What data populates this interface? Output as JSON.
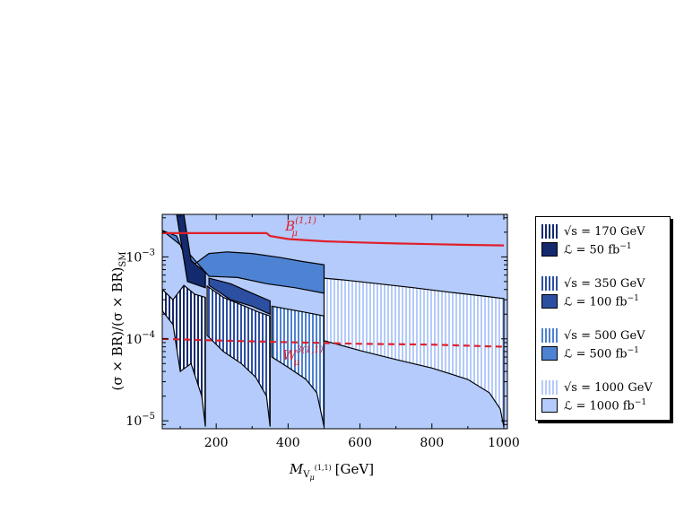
{
  "chart_data": {
    "type": "area",
    "xlabel_main": "M",
    "xlabel_sub": "V",
    "xlabel_subsub": "μ",
    "xlabel_sup": "(1,1)",
    "xlabel_unit": "[GeV]",
    "ylabel": "(σ × BR)/(σ × BR)",
    "ylabel_sub": "SM",
    "xlim": [
      50,
      1010
    ],
    "ylim": [
      8e-06,
      0.0033
    ],
    "yscale": "log",
    "x_ticks": [
      200,
      400,
      600,
      800,
      1000
    ],
    "x_tick_labels": [
      "200",
      "400",
      "600",
      "800",
      "1000"
    ],
    "y_ticks": [
      1e-05,
      0.0001,
      0.001
    ],
    "y_tick_labels": [
      {
        "base": "10",
        "exp": "−5"
      },
      {
        "base": "10",
        "exp": "−4"
      },
      {
        "base": "10",
        "exp": "−3"
      }
    ],
    "regions": [
      {
        "sqrt_s": 1000,
        "color": "#b4cbfb",
        "hatch": false,
        "upper": [
          [
            50,
            0.0033
          ],
          [
            1000,
            0.0033
          ]
        ],
        "lower": [
          [
            50,
            0.0033
          ],
          [
            1000,
            0.0033
          ]
        ]
      },
      {
        "sqrt_s": 1000,
        "color": "#b4cbfb",
        "hatch": true,
        "upper": [
          [
            500,
            0.00055
          ],
          [
            560,
            0.00052
          ],
          [
            650,
            0.00047
          ],
          [
            750,
            0.00042
          ],
          [
            850,
            0.00037
          ],
          [
            950,
            0.00033
          ],
          [
            1000,
            0.00031
          ]
        ],
        "lower": [
          [
            500,
            9.5e-05
          ],
          [
            600,
            7.2e-05
          ],
          [
            700,
            5.6e-05
          ],
          [
            800,
            4.4e-05
          ],
          [
            900,
            3.2e-05
          ],
          [
            960,
            2.2e-05
          ],
          [
            990,
            1.4e-05
          ],
          [
            1000,
            8.5e-06
          ]
        ]
      },
      {
        "sqrt_s": 500,
        "color": "#4e82d2",
        "hatch": false,
        "upper": [
          [
            50,
            0.0021
          ],
          [
            90,
            0.0018
          ],
          [
            110,
            0.0011
          ],
          [
            140,
            0.00082
          ],
          [
            180,
            0.0011
          ],
          [
            230,
            0.00115
          ],
          [
            300,
            0.0011
          ],
          [
            380,
            0.00098
          ],
          [
            440,
            0.00088
          ],
          [
            500,
            0.0008
          ]
        ],
        "lower": [
          [
            50,
            0.0021
          ],
          [
            110,
            0.0013
          ],
          [
            180,
            0.00058
          ],
          [
            260,
            0.00056
          ],
          [
            340,
            0.00047
          ],
          [
            420,
            0.00042
          ],
          [
            500,
            0.00036
          ]
        ]
      },
      {
        "sqrt_s": 500,
        "color": "#4e82d2",
        "hatch": true,
        "upper": [
          [
            355,
            0.00025
          ],
          [
            400,
            0.00023
          ],
          [
            450,
            0.00021
          ],
          [
            500,
            0.00019
          ]
        ],
        "lower": [
          [
            355,
            6e-05
          ],
          [
            400,
            4.5e-05
          ],
          [
            450,
            3.2e-05
          ],
          [
            480,
            2.2e-05
          ],
          [
            500,
            8.5e-06
          ]
        ]
      },
      {
        "sqrt_s": 350,
        "color": "#2d4fa2",
        "hatch": false,
        "upper": [
          [
            180,
            0.00055
          ],
          [
            240,
            0.00047
          ],
          [
            300,
            0.00036
          ],
          [
            350,
            0.00029
          ]
        ],
        "lower": [
          [
            180,
            0.00045
          ],
          [
            240,
            0.0003
          ],
          [
            300,
            0.00025
          ],
          [
            350,
            0.0002
          ]
        ]
      },
      {
        "sqrt_s": 350,
        "color": "#2d4fa2",
        "hatch": true,
        "upper": [
          [
            175,
            0.00044
          ],
          [
            220,
            0.00032
          ],
          [
            270,
            0.00026
          ],
          [
            320,
            0.00021
          ],
          [
            350,
            0.00019
          ]
        ],
        "lower": [
          [
            175,
            0.00011
          ],
          [
            220,
            7e-05
          ],
          [
            270,
            5e-05
          ],
          [
            310,
            3.4e-05
          ],
          [
            340,
            2e-05
          ],
          [
            350,
            8.5e-06
          ]
        ]
      },
      {
        "sqrt_s": 170,
        "color": "#142a6e",
        "hatch": false,
        "upper": [
          [
            90,
            0.0033
          ],
          [
            110,
            0.0033
          ],
          [
            130,
            0.0009
          ],
          [
            170,
            0.00065
          ]
        ],
        "lower": [
          [
            90,
            0.0033
          ],
          [
            120,
            0.0005
          ],
          [
            170,
            0.00042
          ]
        ]
      },
      {
        "sqrt_s": 170,
        "color": "#142a6e",
        "hatch": true,
        "upper": [
          [
            50,
            0.0004
          ],
          [
            80,
            0.0003
          ],
          [
            110,
            0.00045
          ],
          [
            140,
            0.00035
          ],
          [
            170,
            0.00032
          ]
        ],
        "lower": [
          [
            50,
            0.00022
          ],
          [
            80,
            0.00015
          ],
          [
            100,
            4e-05
          ],
          [
            130,
            5e-05
          ],
          [
            160,
            2e-05
          ],
          [
            170,
            8.5e-06
          ]
        ]
      }
    ],
    "lines": [
      {
        "name": "B",
        "sub": "μ",
        "sup": "(1,1)",
        "color": "#e0202a",
        "style": "solid",
        "points": [
          [
            50,
            0.00195
          ],
          [
            340,
            0.00195
          ],
          [
            350,
            0.0018
          ],
          [
            400,
            0.00165
          ],
          [
            500,
            0.00155
          ],
          [
            600,
            0.0015
          ],
          [
            700,
            0.00146
          ],
          [
            800,
            0.00143
          ],
          [
            900,
            0.0014
          ],
          [
            1000,
            0.00138
          ]
        ],
        "label_at": [
          392,
          0.0021
        ]
      },
      {
        "name": "W",
        "sub": "μ",
        "sup": "3(1,1)",
        "color": "#e0202a",
        "style": "dashed",
        "points": [
          [
            50,
            0.0001
          ],
          [
            200,
            9.55e-05
          ],
          [
            400,
            9.1e-05
          ],
          [
            600,
            8.7e-05
          ],
          [
            800,
            8.5e-05
          ],
          [
            1000,
            8e-05
          ]
        ],
        "label_at": [
          384,
          5.6e-05
        ]
      }
    ]
  },
  "legend": {
    "groups": [
      {
        "energy": "= 170 GeV",
        "lumi": "= 50 fb",
        "lumi_exp": "−1",
        "color": "#142a6e"
      },
      {
        "energy": "= 350 GeV",
        "lumi": "= 100 fb",
        "lumi_exp": "−1",
        "color": "#2d4fa2"
      },
      {
        "energy": "= 500 GeV",
        "lumi": "= 500 fb",
        "lumi_exp": "−1",
        "color": "#4e82d2"
      },
      {
        "energy": "= 1000 GeV",
        "lumi": "= 1000 fb",
        "lumi_exp": "−1",
        "color": "#b4cbfb"
      }
    ],
    "sqrt_symbol": "√s",
    "lumi_symbol": "ℒ"
  }
}
